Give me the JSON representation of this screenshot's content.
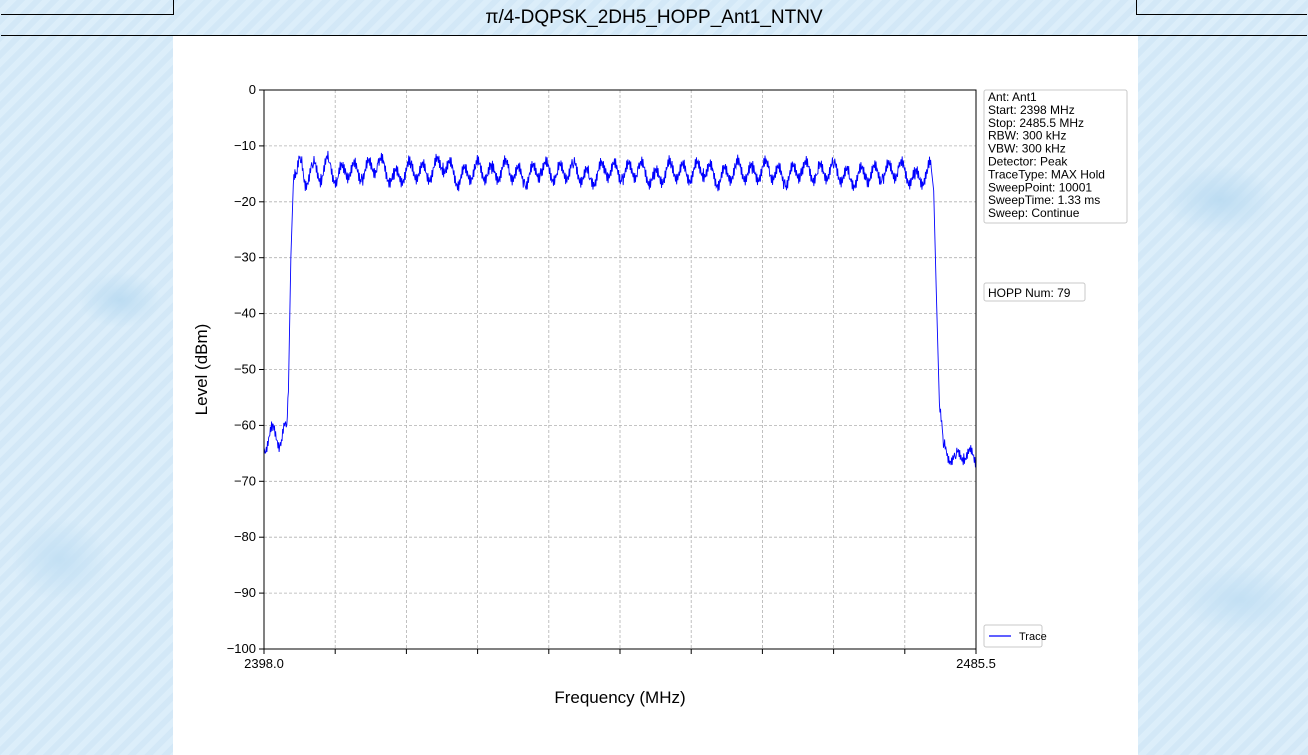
{
  "page": {
    "title": "π/4-DQPSK_2DH5_HOPP_Ant1_NTNV"
  },
  "chart_data": {
    "type": "line",
    "title": "",
    "xlabel": "Frequency (MHz)",
    "ylabel": "Level (dBm)",
    "xlim": [
      2398.0,
      2485.5
    ],
    "ylim": [
      -100,
      0
    ],
    "x_tick_labels": [
      "2398.0",
      "2485.5"
    ],
    "y_ticks": [
      0,
      -10,
      -20,
      -30,
      -40,
      -50,
      -60,
      -70,
      -80,
      -90,
      -100
    ],
    "y_tick_labels": [
      "0",
      "−10",
      "−20",
      "−30",
      "−40",
      "−50",
      "−60",
      "−70",
      "−80",
      "−90",
      "−100"
    ],
    "grid": true,
    "info_box": [
      "Ant: Ant1",
      "Start: 2398 MHz",
      "Stop: 2485.5 MHz",
      "RBW: 300 kHz",
      "VBW: 300 kHz",
      "Detector: Peak",
      "TraceType: MAX Hold",
      "SweepPoint: 10001",
      "SweepTime: 1.33 ms",
      "Sweep: Continue"
    ],
    "hopp_label": "HOPP Num: 79",
    "legend": {
      "placement": "bottom-right",
      "label": "Trace"
    },
    "trace_color": "#0000ff",
    "series": [
      {
        "name": "Trace",
        "x": [
          2398.0,
          2399.0,
          2400.0,
          2400.8,
          2401.0,
          2401.3,
          2401.6,
          2402.0,
          2402.5,
          2403.0,
          2404.0,
          2405.0,
          2406.0,
          2407.0,
          2408.0,
          2410.0,
          2412.0,
          2414.0,
          2416.0,
          2418.0,
          2420.0,
          2422.0,
          2424.0,
          2426.0,
          2428.0,
          2430.0,
          2432.0,
          2434.0,
          2436.0,
          2438.0,
          2440.0,
          2442.0,
          2444.0,
          2446.0,
          2448.0,
          2450.0,
          2452.0,
          2454.0,
          2456.0,
          2458.0,
          2460.0,
          2462.0,
          2464.0,
          2466.0,
          2468.0,
          2470.0,
          2472.0,
          2474.0,
          2476.0,
          2478.0,
          2479.5,
          2480.0,
          2480.3,
          2480.6,
          2481.0,
          2481.5,
          2482.0,
          2483.0,
          2484.0,
          2485.5
        ],
        "y": [
          -64,
          -61,
          -63,
          -60,
          -54,
          -30,
          -17,
          -15,
          -13,
          -16,
          -14,
          -15,
          -13,
          -16,
          -14,
          -15,
          -13,
          -16,
          -14,
          -15,
          -13,
          -16,
          -14,
          -15,
          -14,
          -16,
          -14,
          -15,
          -14,
          -16,
          -14,
          -15,
          -14,
          -16,
          -14,
          -15,
          -14,
          -16,
          -14,
          -15,
          -14,
          -16,
          -14,
          -15,
          -14,
          -16,
          -15,
          -15,
          -14,
          -16,
          -15,
          -14,
          -18,
          -35,
          -56,
          -64,
          -65,
          -66,
          -65,
          -66
        ]
      }
    ]
  }
}
